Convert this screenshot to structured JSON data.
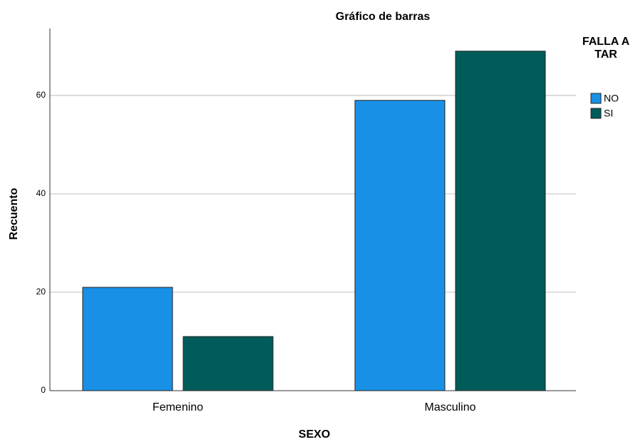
{
  "chart_data": {
    "type": "bar",
    "title": "Gráfico de barras",
    "x_label": "SEXO",
    "y_label": "Recuento",
    "categories": [
      "Femenino",
      "Masculino"
    ],
    "legend_title": "FALLA A TAR",
    "legend_position": "right",
    "series": [
      {
        "name": "NO",
        "color": "#1890e6",
        "values": [
          21,
          59
        ]
      },
      {
        "name": "SI",
        "color": "#005c5a",
        "values": [
          11,
          69
        ]
      }
    ],
    "ylim": [
      0,
      73.6
    ],
    "yticks": [
      0,
      20,
      40,
      60
    ],
    "grid": true
  }
}
